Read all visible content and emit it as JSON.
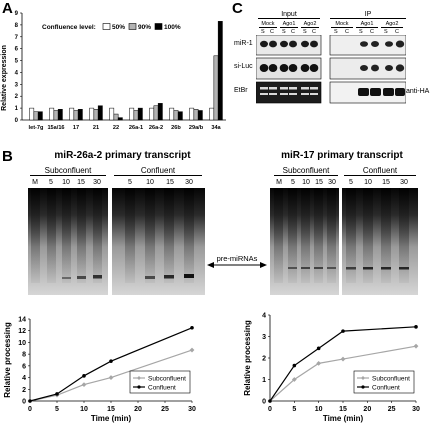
{
  "panels": {
    "A": "A",
    "B": "B",
    "C": "C"
  },
  "panelA": {
    "legend_title": "Confluence level:",
    "legend_items": [
      "50%",
      "90%",
      "100%"
    ],
    "ylabel": "Relative expression"
  },
  "panelC": {
    "input_label": "Input",
    "ip_label": "IP",
    "group_labels": [
      "Mock",
      "Ago1",
      "Ago2"
    ],
    "lane_labels": [
      "S",
      "C"
    ],
    "row_labels": [
      "miR-1",
      "si-Luc",
      "EtBr"
    ],
    "antibody_label": "anti-HA"
  },
  "panelB": {
    "left": {
      "title": "miR-26a-2 primary transcript",
      "groups": [
        "Subconfluent",
        "Confluent"
      ],
      "lanes": [
        "M",
        "5",
        "10",
        "15",
        "30",
        "5",
        "10",
        "15",
        "30"
      ]
    },
    "right": {
      "title": "miR-17 primary transcript",
      "groups": [
        "Subconfluent",
        "Confluent"
      ],
      "lanes": [
        "M",
        "5",
        "10",
        "15",
        "30",
        "5",
        "10",
        "15",
        "30"
      ]
    },
    "arrow_label": "pre-miRNAs"
  },
  "colors": {
    "bar50": "#ffffff",
    "bar90": "#b3b3b3",
    "bar100": "#000000",
    "subconfluent": "#a6a6a6",
    "confluent": "#000000"
  },
  "chart_data": [
    {
      "type": "bar",
      "categories": [
        "let-7g",
        "15a/16",
        "17",
        "21",
        "22",
        "26a-1",
        "26a-2",
        "26b",
        "29a/b",
        "34a"
      ],
      "series": [
        {
          "name": "50%",
          "values": [
            1.0,
            1.0,
            1.0,
            1.0,
            1.0,
            1.0,
            1.0,
            1.0,
            1.0,
            1.0
          ]
        },
        {
          "name": "90%",
          "values": [
            0.7,
            0.8,
            0.8,
            0.9,
            0.5,
            0.8,
            1.2,
            0.8,
            0.9,
            5.4
          ]
        },
        {
          "name": "100%",
          "values": [
            0.7,
            0.9,
            0.9,
            1.2,
            0.2,
            1.0,
            1.4,
            0.7,
            0.8,
            8.3
          ]
        }
      ],
      "xlabel": "",
      "ylabel": "Relative expression",
      "ylim": [
        0,
        9
      ],
      "yticks": [
        0,
        1,
        2,
        3,
        4,
        5,
        6,
        7,
        8,
        9
      ],
      "legend": "top"
    },
    {
      "type": "line",
      "x": [
        0,
        5,
        10,
        15,
        30
      ],
      "series": [
        {
          "name": "Subconfluent",
          "values": [
            0,
            1.0,
            2.8,
            4.0,
            8.7
          ]
        },
        {
          "name": "Confluent",
          "values": [
            0,
            1.2,
            4.3,
            6.8,
            12.5
          ]
        }
      ],
      "xlabel": "Time (min)",
      "ylabel": "Relative processing",
      "xlim": [
        0,
        30
      ],
      "ylim": [
        0,
        14
      ],
      "xticks": [
        0,
        5,
        10,
        15,
        20,
        25,
        30
      ],
      "yticks": [
        0,
        2,
        4,
        6,
        8,
        10,
        12,
        14
      ],
      "legend": "bottom-right"
    },
    {
      "type": "line",
      "x": [
        0,
        5,
        10,
        15,
        30
      ],
      "series": [
        {
          "name": "Subconfluent",
          "values": [
            0,
            1.0,
            1.75,
            1.95,
            2.55
          ]
        },
        {
          "name": "Confluent",
          "values": [
            0,
            1.65,
            2.45,
            3.25,
            3.45
          ]
        }
      ],
      "xlabel": "Time (min)",
      "ylabel": "Relative processing",
      "xlim": [
        0,
        30
      ],
      "ylim": [
        0,
        4
      ],
      "xticks": [
        0,
        5,
        10,
        15,
        20,
        25,
        30
      ],
      "yticks": [
        0,
        1,
        2,
        3,
        4
      ],
      "legend": "bottom-right"
    }
  ]
}
